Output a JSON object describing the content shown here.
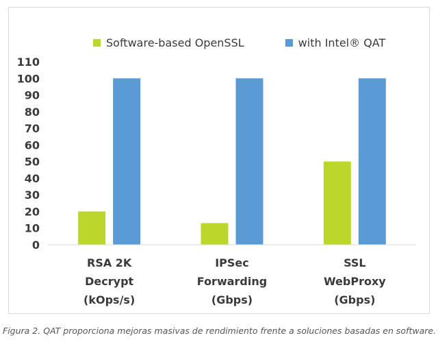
{
  "chart_data": {
    "type": "bar",
    "categories": [
      [
        "RSA 2K",
        "Decrypt",
        "(kOps/s)"
      ],
      [
        "IPSec",
        "Forwarding",
        "(Gbps)"
      ],
      [
        "SSL",
        "WebProxy",
        "(Gbps)"
      ]
    ],
    "series": [
      {
        "name": "Software-based OpenSSL",
        "color": "#bdd62b",
        "values": [
          20,
          13,
          50
        ]
      },
      {
        "name": "with Intel® QAT",
        "color": "#5b9bd5",
        "values": [
          100,
          100,
          100
        ]
      }
    ],
    "ylim": [
      0,
      110
    ],
    "yticks": [
      0,
      10,
      20,
      30,
      40,
      50,
      60,
      70,
      80,
      90,
      100,
      110
    ],
    "grid": false,
    "legend_position": "top"
  },
  "caption": "Figura 2. QAT proporciona mejoras masivas de rendimiento frente a soluciones basadas en software."
}
